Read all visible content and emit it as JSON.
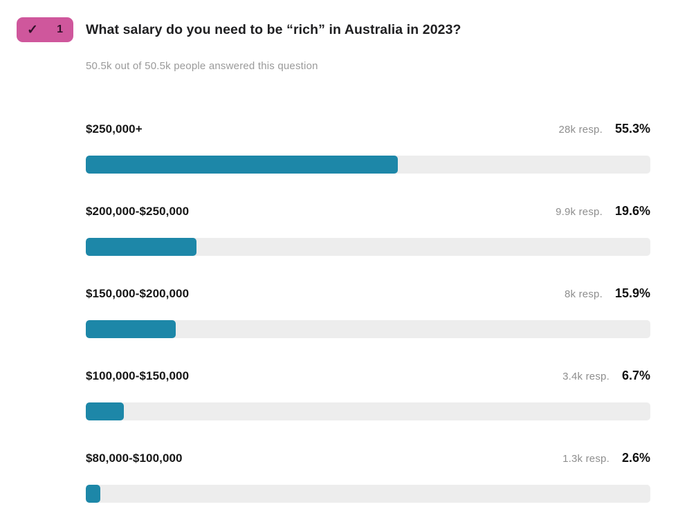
{
  "question": {
    "number": "1",
    "check_icon": "✓",
    "title": "What salary do you need to be “rich” in Australia in 2023?",
    "answered_summary": "50.5k out of 50.5k people answered this question"
  },
  "colors": {
    "badge_bg": "#cf579c",
    "badge_fg": "#33102a",
    "bar_fill": "#1d87a8",
    "bar_track": "#ededed",
    "muted_text": "#9a9a9a"
  },
  "results": [
    {
      "label": "$250,000+",
      "responses_label": "28k resp.",
      "percent_label": "55.3%",
      "percent_value": 55.3
    },
    {
      "label": "$200,000-$250,000",
      "responses_label": "9.9k resp.",
      "percent_label": "19.6%",
      "percent_value": 19.6
    },
    {
      "label": "$150,000-$200,000",
      "responses_label": "8k resp.",
      "percent_label": "15.9%",
      "percent_value": 15.9
    },
    {
      "label": "$100,000-$150,000",
      "responses_label": "3.4k resp.",
      "percent_label": "6.7%",
      "percent_value": 6.7
    },
    {
      "label": "$80,000-$100,000",
      "responses_label": "1.3k resp.",
      "percent_label": "2.6%",
      "percent_value": 2.6
    }
  ],
  "chart_data": {
    "type": "bar",
    "orientation": "horizontal",
    "title": "What salary do you need to be “rich” in Australia in 2023?",
    "subtitle": "50.5k out of 50.5k people answered this question",
    "categories": [
      "$250,000+",
      "$200,000-$250,000",
      "$150,000-$200,000",
      "$100,000-$150,000",
      "$80,000-$100,000"
    ],
    "values": [
      55.3,
      19.6,
      15.9,
      6.7,
      2.6
    ],
    "value_unit": "%",
    "response_counts": [
      "28k",
      "9.9k",
      "8k",
      "3.4k",
      "1.3k"
    ],
    "total_responses": "50.5k",
    "xlim": [
      0,
      100
    ],
    "grid": false,
    "legend": false,
    "bar_color": "#1d87a8",
    "track_color": "#ededed"
  }
}
